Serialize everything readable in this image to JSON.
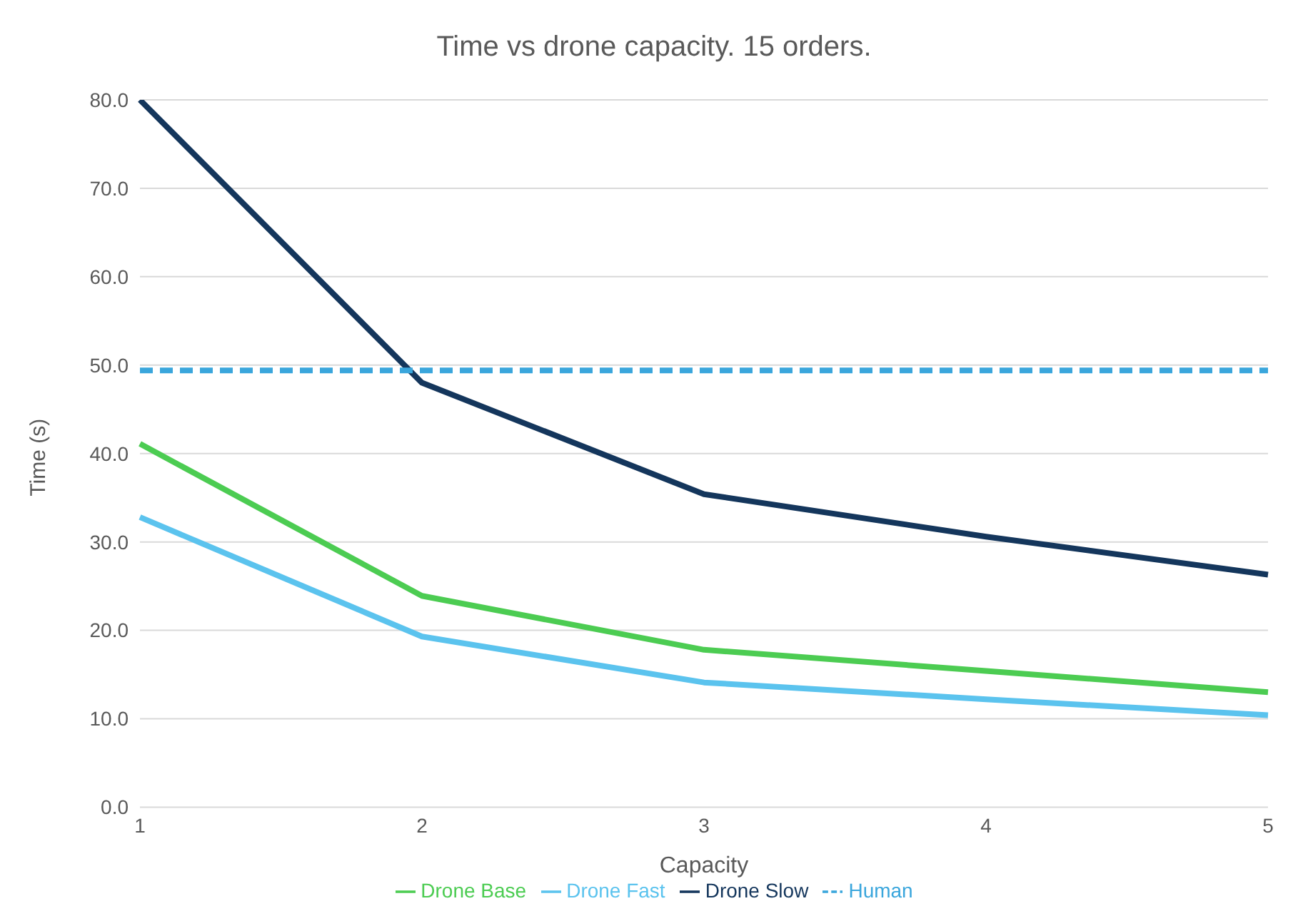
{
  "chart_data": {
    "type": "line",
    "title": "Time vs drone capacity. 15 orders.",
    "xlabel": "Capacity",
    "ylabel": "Time (s)",
    "categories": [
      "1",
      "2",
      "3",
      "4",
      "5"
    ],
    "series": [
      {
        "name": "Drone Base",
        "color": "#4ccc52",
        "values": [
          41.1,
          23.9,
          17.8,
          15.4,
          13.0
        ]
      },
      {
        "name": "Drone Fast",
        "color": "#5bc3ee",
        "values": [
          32.8,
          19.3,
          14.1,
          12.2,
          10.4
        ]
      },
      {
        "name": "Drone Slow",
        "color": "#14365c",
        "values": [
          80.0,
          48.0,
          35.4,
          30.6,
          26.3
        ]
      },
      {
        "name": "Human",
        "color": "#3aa6dc",
        "values": [
          49.4,
          49.4,
          49.4,
          49.4,
          49.4
        ],
        "line_style": "dashed"
      }
    ],
    "ylim": [
      0,
      80
    ],
    "yticks": [
      {
        "value": 0,
        "label": "0.0"
      },
      {
        "value": 10,
        "label": "10.0"
      },
      {
        "value": 20,
        "label": "20.0"
      },
      {
        "value": 30,
        "label": "30.0"
      },
      {
        "value": 40,
        "label": "40.0"
      },
      {
        "value": 50,
        "label": "50.0"
      },
      {
        "value": 60,
        "label": "60.0"
      },
      {
        "value": 70,
        "label": "70.0"
      },
      {
        "value": 80,
        "label": "80.0"
      }
    ],
    "grid": "y",
    "legend": "bottom",
    "marker": "none"
  }
}
